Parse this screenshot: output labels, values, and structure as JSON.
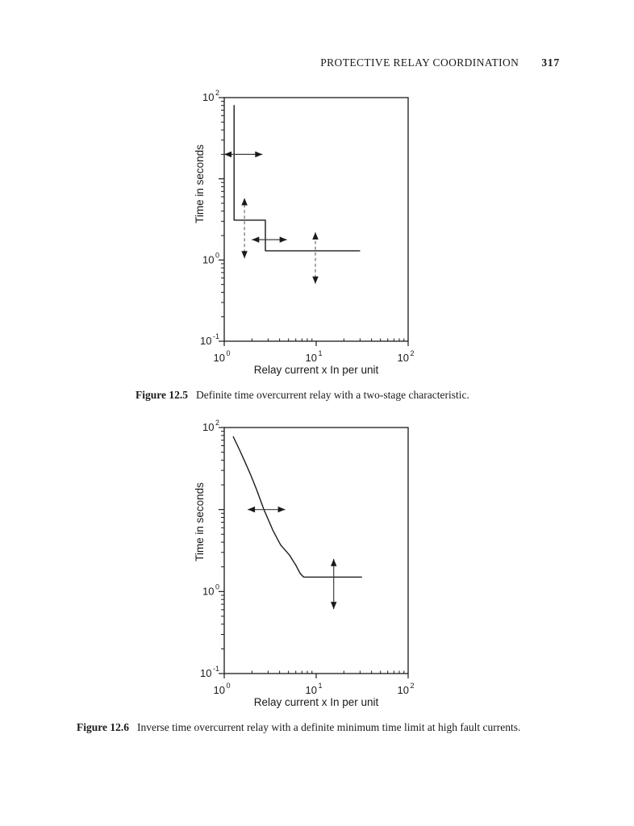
{
  "page": {
    "header": {
      "title": "PROTECTIVE RELAY COORDINATION",
      "page_number": "317"
    }
  },
  "colors": {
    "ink": "#1a1a1a",
    "paper": "#ffffff",
    "arrow_solid": "#3d3d3d",
    "arrow_dashed": "#6e6e6e"
  },
  "figures": [
    {
      "label": "Figure 12.5",
      "caption": "Definite time overcurrent relay with a two-stage characteristic."
    },
    {
      "label": "Figure 12.6",
      "caption": "Inverse time overcurrent relay with a definite minimum time limit at high fault currents."
    }
  ],
  "chart_data": [
    {
      "id": "figure-12-5",
      "type": "line",
      "title": "",
      "xlabel": "Relay current x In  per unit",
      "ylabel": "Time in seconds",
      "xscale": "log",
      "yscale": "log",
      "xlim": [
        1,
        100
      ],
      "ylim": [
        0.1,
        100
      ],
      "grid": false,
      "legend": null,
      "x_ticks": [
        {
          "value": 1,
          "label": "10",
          "exponent": "0"
        },
        {
          "value": 10,
          "label": "10",
          "exponent": "1"
        },
        {
          "value": 100,
          "label": "10",
          "exponent": "2"
        }
      ],
      "y_ticks": [
        {
          "value": 100,
          "label": "10",
          "exponent": "2"
        },
        {
          "value": 1,
          "label": "10",
          "exponent": "0"
        },
        {
          "value": 0.1,
          "label": "10",
          "exponent": "-1"
        }
      ],
      "series": [
        {
          "name": "two-stage definite time characteristic",
          "points": [
            [
              1.28,
              81
            ],
            [
              1.28,
              3.1
            ],
            [
              2.8,
              3.1
            ],
            [
              2.8,
              1.3
            ],
            [
              30,
              1.3
            ]
          ]
        }
      ],
      "arrows": [
        {
          "orient": "h",
          "y": 20,
          "x1": 1.0,
          "x2": 2.6,
          "style": "solid"
        },
        {
          "orient": "v",
          "x": 1.66,
          "y1": 1.05,
          "y2": 5.8,
          "style": "dashed"
        },
        {
          "orient": "h",
          "y": 1.78,
          "x1": 2.0,
          "x2": 4.8,
          "style": "solid"
        },
        {
          "orient": "v",
          "x": 9.8,
          "y1": 0.51,
          "y2": 2.2,
          "style": "dashed"
        }
      ]
    },
    {
      "id": "figure-12-6",
      "type": "line",
      "title": "",
      "xlabel": "Relay current x In  per unit",
      "ylabel": "Time in seconds",
      "xscale": "log",
      "yscale": "log",
      "xlim": [
        1,
        100
      ],
      "ylim": [
        0.1,
        100
      ],
      "grid": false,
      "legend": null,
      "x_ticks": [
        {
          "value": 1,
          "label": "10",
          "exponent": "0"
        },
        {
          "value": 10,
          "label": "10",
          "exponent": "1"
        },
        {
          "value": 100,
          "label": "10",
          "exponent": "2"
        }
      ],
      "y_ticks": [
        {
          "value": 100,
          "label": "10",
          "exponent": "2"
        },
        {
          "value": 1,
          "label": "10",
          "exponent": "0"
        },
        {
          "value": 0.1,
          "label": "10",
          "exponent": "-1"
        }
      ],
      "series": [
        {
          "name": "inverse time characteristic with definite minimum time",
          "points": [
            [
              1.25,
              78
            ],
            [
              1.47,
              53
            ],
            [
              1.7,
              37
            ],
            [
              1.95,
              26
            ],
            [
              2.25,
              17.5
            ],
            [
              2.7,
              10
            ],
            [
              3.4,
              5.5
            ],
            [
              4.1,
              3.7
            ],
            [
              5.1,
              2.8
            ],
            [
              6.0,
              2.1
            ],
            [
              6.7,
              1.66
            ],
            [
              7.3,
              1.5
            ],
            [
              31.5,
              1.5
            ]
          ]
        }
      ],
      "arrows": [
        {
          "orient": "h",
          "y": 10,
          "x1": 1.8,
          "x2": 4.6,
          "style": "solid"
        },
        {
          "orient": "v",
          "x": 15.5,
          "y1": 0.61,
          "y2": 2.5,
          "style": "solid"
        }
      ]
    }
  ]
}
